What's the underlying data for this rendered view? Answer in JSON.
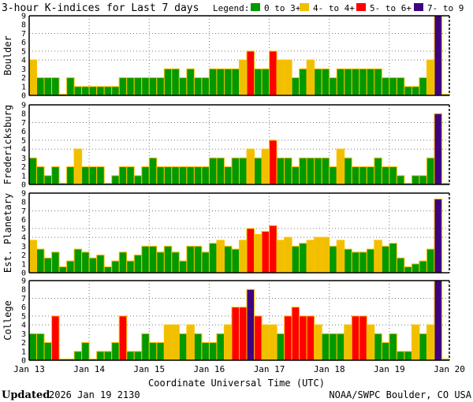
{
  "title": "3-hour K-indices for Last 7 days",
  "legend": {
    "label": "Legend:",
    "items": [
      {
        "label": "0 to 3+",
        "color": "#009900"
      },
      {
        "label": "4- to 4+",
        "color": "#f0c000"
      },
      {
        "label": "5- to 6+",
        "color": "#ff0000"
      },
      {
        "label": "7- to 9",
        "color": "#400080"
      }
    ]
  },
  "footer": {
    "updated_label": "Updated",
    "updated_value": "2026 Jan 19 2130",
    "credit": "NOAA/SWPC Boulder, CO USA"
  },
  "chart_data": {
    "type": "bar",
    "title": "3-hour K-indices for Last 7 days",
    "xlabel": "Coordinate Universal Time (UTC)",
    "x_ticks": [
      "Jan 13",
      "Jan 14",
      "Jan 15",
      "Jan 16",
      "Jan 17",
      "Jan 18",
      "Jan 19",
      "Jan 20"
    ],
    "bars_per_day": 8,
    "ylim": [
      0,
      9
    ],
    "y_ticks": [
      "0",
      "1",
      "2",
      "3",
      "4",
      "5",
      "6",
      "7",
      "8",
      "9"
    ],
    "grid_y": [
      4,
      5,
      7
    ],
    "panels": [
      {
        "name": "Boulder",
        "values": [
          4,
          2,
          2,
          2,
          0,
          2,
          1,
          1,
          1,
          1,
          1,
          1,
          2,
          2,
          2,
          2,
          2,
          2,
          3,
          3,
          2,
          3,
          2,
          2,
          3,
          3,
          3,
          3,
          4,
          5,
          3,
          3,
          5,
          4,
          4,
          2,
          3,
          4,
          3,
          3,
          2,
          3,
          3,
          3,
          3,
          3,
          3,
          2,
          2,
          2,
          1,
          1,
          2,
          4,
          9,
          0
        ]
      },
      {
        "name": "Fredericksburg",
        "values": [
          3,
          2,
          1,
          2,
          0,
          2,
          4,
          2,
          2,
          2,
          0,
          1,
          2,
          2,
          1,
          2,
          3,
          2,
          2,
          2,
          2,
          2,
          2,
          2,
          3,
          3,
          2,
          3,
          3,
          4,
          3,
          4,
          5,
          3,
          3,
          2,
          3,
          3,
          3,
          3,
          2,
          4,
          3,
          2,
          2,
          2,
          3,
          2,
          2,
          1,
          0,
          1,
          1,
          3,
          8,
          0
        ]
      },
      {
        "name": "Est. Planetary",
        "values": [
          3.67,
          2.67,
          1.67,
          2.33,
          0.67,
          1.33,
          2.67,
          2.33,
          1.67,
          2,
          0.67,
          1.33,
          2.33,
          1.33,
          2,
          3,
          3,
          2.33,
          3,
          2.33,
          1.33,
          3,
          3,
          2.33,
          3.33,
          3.67,
          3,
          2.67,
          3.67,
          5,
          4.33,
          4.67,
          5.33,
          3.67,
          4,
          3,
          3.33,
          3.67,
          4,
          4,
          3,
          3.67,
          2.67,
          2.33,
          2.33,
          2.67,
          3.67,
          3,
          3.33,
          1.67,
          0.67,
          1,
          1.33,
          2.67,
          8.33,
          null
        ]
      },
      {
        "name": "College",
        "values": [
          3,
          3,
          2,
          5,
          0,
          0,
          1,
          2,
          0,
          1,
          1,
          2,
          5,
          1,
          1,
          3,
          2,
          2,
          4,
          4,
          3,
          4,
          3,
          2,
          2,
          3,
          4,
          6,
          6,
          8,
          5,
          4,
          4,
          3,
          5,
          6,
          5,
          5,
          4,
          3,
          3,
          3,
          4,
          5,
          5,
          4,
          3,
          2,
          3,
          1,
          1,
          4,
          3,
          4,
          9,
          0
        ]
      }
    ]
  }
}
